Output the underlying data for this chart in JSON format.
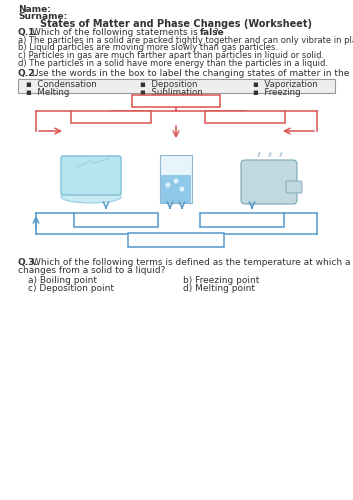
{
  "title": "States of Matter and Phase Changes (Worksheet)",
  "name_label": "Name:",
  "surname_label": "Surname:",
  "q1_label": "Q.1.",
  "q1_intro": " Which of the following statements is ",
  "q1_bold": "false",
  "q1_answers": [
    "a) The particles in a solid are packed tightly together and can only vibrate in place.",
    "b) Liquid particles are moving more slowly than gas particles.",
    "c) Particles in gas are much farther apart than particles in liquid or solid.",
    "d) The particles in a solid have more energy than the particles in a liquid."
  ],
  "q2_label": "Q.2.",
  "q2_text": " Use the words in the box to label the changing states of matter in the picture below.",
  "q2_words_row1": [
    "Condensation",
    "Deposition",
    "Vaporization"
  ],
  "q2_words_row2": [
    "Melting",
    "Sublimation",
    "Freezing"
  ],
  "q3_label": "Q.3.",
  "q3_text1": " Which of the following terms is defined as the temperature at which a substance",
  "q3_text2": "changes from a solid to a liquid?",
  "q3_opts_left": [
    "a) Boiling point",
    "c) Deposition point"
  ],
  "q3_opts_right": [
    "b) Freezing point",
    "d) Melting point"
  ],
  "red": "#d9534f",
  "blue": "#5599cc",
  "gray_border": "#999999",
  "gray_bg": "#eeeeee",
  "text_dark": "#333333"
}
